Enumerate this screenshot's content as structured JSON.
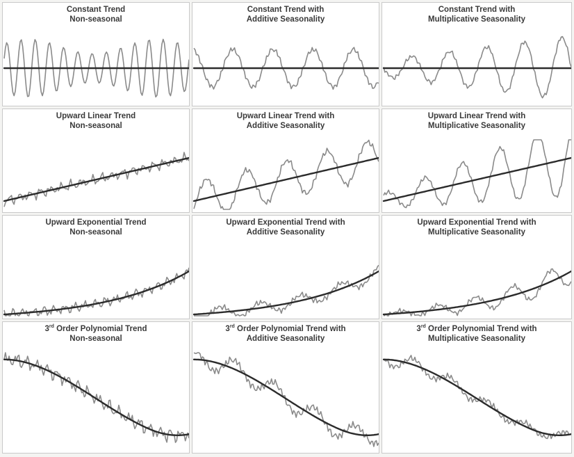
{
  "figure": {
    "layout": "4 rows x 3 columns",
    "trend_color": "#2b2b2b",
    "data_color": "#8a8a8a"
  },
  "chart_data": [
    {
      "type": "line",
      "title_pre": "",
      "title_sup": "",
      "title_main": "Constant Trend\nNon-seasonal",
      "trend": "constant",
      "seasonality": "none",
      "series": [
        {
          "name": "data",
          "style": "thin-gray"
        },
        {
          "name": "trend",
          "style": "thick-dark"
        }
      ]
    },
    {
      "type": "line",
      "title_pre": "",
      "title_sup": "",
      "title_main": "Constant Trend with\nAdditive Seasonality",
      "trend": "constant",
      "seasonality": "additive",
      "series": [
        {
          "name": "data",
          "style": "thin-gray"
        },
        {
          "name": "trend",
          "style": "thick-dark"
        }
      ]
    },
    {
      "type": "line",
      "title_pre": "",
      "title_sup": "",
      "title_main": "Constant Trend with\nMultiplicative Seasonality",
      "trend": "constant",
      "seasonality": "multiplicative",
      "series": [
        {
          "name": "data",
          "style": "thin-gray"
        },
        {
          "name": "trend",
          "style": "thick-dark"
        }
      ]
    },
    {
      "type": "line",
      "title_pre": "",
      "title_sup": "",
      "title_main": "Upward Linear Trend\nNon-seasonal",
      "trend": "linear",
      "seasonality": "none",
      "series": [
        {
          "name": "data",
          "style": "thin-gray"
        },
        {
          "name": "trend",
          "style": "thick-dark"
        }
      ]
    },
    {
      "type": "line",
      "title_pre": "",
      "title_sup": "",
      "title_main": "Upward Linear Trend with\nAdditive Seasonality",
      "trend": "linear",
      "seasonality": "additive",
      "series": [
        {
          "name": "data",
          "style": "thin-gray"
        },
        {
          "name": "trend",
          "style": "thick-dark"
        }
      ]
    },
    {
      "type": "line",
      "title_pre": "",
      "title_sup": "",
      "title_main": "Upward Linear Trend with\nMultiplicative Seasonality",
      "trend": "linear",
      "seasonality": "multiplicative",
      "series": [
        {
          "name": "data",
          "style": "thin-gray"
        },
        {
          "name": "trend",
          "style": "thick-dark"
        }
      ]
    },
    {
      "type": "line",
      "title_pre": "",
      "title_sup": "",
      "title_main": "Upward Exponential Trend\nNon-seasonal",
      "trend": "exponential",
      "seasonality": "none",
      "series": [
        {
          "name": "data",
          "style": "thin-gray"
        },
        {
          "name": "trend",
          "style": "thick-dark"
        }
      ]
    },
    {
      "type": "line",
      "title_pre": "",
      "title_sup": "",
      "title_main": "Upward Exponential Trend with\nAdditive Seasonality",
      "trend": "exponential",
      "seasonality": "additive",
      "series": [
        {
          "name": "data",
          "style": "thin-gray"
        },
        {
          "name": "trend",
          "style": "thick-dark"
        }
      ]
    },
    {
      "type": "line",
      "title_pre": "",
      "title_sup": "",
      "title_main": "Upward Exponential Trend with\nMultiplicative Seasonality",
      "trend": "exponential",
      "seasonality": "multiplicative",
      "series": [
        {
          "name": "data",
          "style": "thin-gray"
        },
        {
          "name": "trend",
          "style": "thick-dark"
        }
      ]
    },
    {
      "type": "line",
      "title_pre": "3",
      "title_sup": "rd",
      "title_main": " Order Polynomial Trend\nNon-seasonal",
      "trend": "cubic",
      "seasonality": "none",
      "series": [
        {
          "name": "data",
          "style": "thin-gray"
        },
        {
          "name": "trend",
          "style": "thick-dark"
        }
      ]
    },
    {
      "type": "line",
      "title_pre": "3",
      "title_sup": "rd",
      "title_main": " Order Polynomial Trend with\nAdditive Seasonality",
      "trend": "cubic",
      "seasonality": "additive",
      "series": [
        {
          "name": "data",
          "style": "thin-gray"
        },
        {
          "name": "trend",
          "style": "thick-dark"
        }
      ]
    },
    {
      "type": "line",
      "title_pre": "3",
      "title_sup": "rd",
      "title_main": " Order Polynomial Trend with\nMultiplicative Seasonality",
      "trend": "cubic",
      "seasonality": "multiplicative",
      "series": [
        {
          "name": "data",
          "style": "thin-gray"
        },
        {
          "name": "trend",
          "style": "thick-dark"
        }
      ]
    }
  ]
}
